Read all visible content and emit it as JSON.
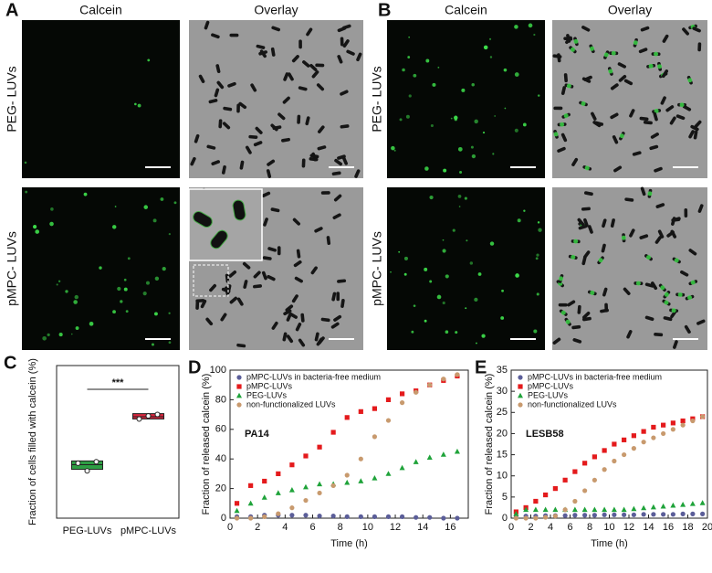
{
  "panels": [
    {
      "label": "A",
      "columns": [
        "Calcein",
        "Overlay"
      ],
      "rows": [
        "PEG- LUVs",
        "pMPC- LUVs"
      ]
    },
    {
      "label": "B",
      "columns": [
        "Calcein",
        "Overlay"
      ],
      "rows": [
        "PEG- LUVs",
        "pMPC- LUVs"
      ]
    }
  ],
  "chart_data": [
    {
      "type": "box",
      "panel": "C",
      "ylabel": "Fraction of cells filled with calcein (%)",
      "categories": [
        "PEG-LUVs",
        "pMPC-LUVs"
      ],
      "ylim": [
        0,
        100
      ],
      "boxes": [
        {
          "low": 32,
          "median": 35,
          "high": 37.5,
          "color": "#2e9e44"
        },
        {
          "low": 65,
          "median": 66.5,
          "high": 68.5,
          "color": "#d7263d"
        }
      ],
      "points": [
        [
          36,
          31,
          37
        ],
        [
          65,
          67,
          68
        ]
      ],
      "annotation": "***"
    },
    {
      "type": "scatter",
      "panel": "D",
      "annotation": "PA14",
      "xlabel": "Time (h)",
      "ylabel": "Fraction of released calcein (%)",
      "xlim": [
        0,
        17.3
      ],
      "xticks": [
        0,
        2,
        4,
        6,
        8,
        10,
        12,
        14,
        16
      ],
      "ylim": [
        0,
        100
      ],
      "yticks": [
        0,
        20,
        40,
        60,
        80,
        100
      ],
      "legend": "upper left",
      "x": [
        0.5,
        1.5,
        2.5,
        3.5,
        4.5,
        5.5,
        6.5,
        7.5,
        8.5,
        9.5,
        10.5,
        11.5,
        12.5,
        13.5,
        14.5,
        15.5,
        16.5
      ],
      "series": [
        {
          "name": "pMPC-LUVs in bacteria-free medium",
          "color": "#5b5e99",
          "marker": "circle",
          "values": [
            1,
            1,
            2,
            2,
            2,
            2,
            1.5,
            1.5,
            1,
            1,
            1,
            1,
            1,
            0.5,
            0.5,
            0,
            0
          ]
        },
        {
          "name": "pMPC-LUVs",
          "color": "#e41a1c",
          "marker": "square",
          "values": [
            10,
            22,
            25,
            30,
            36,
            42,
            48,
            58,
            68,
            72,
            74,
            80,
            84,
            86,
            90,
            93,
            96
          ]
        },
        {
          "name": "PEG-LUVs",
          "color": "#1fa33a",
          "marker": "triangle",
          "values": [
            5,
            10,
            14,
            17,
            19,
            21,
            23,
            23,
            24,
            25,
            27,
            30,
            34,
            38,
            41,
            43,
            45
          ]
        },
        {
          "name": "non-functionalized LUVs",
          "color": "#c89a6e",
          "marker": "circle",
          "values": [
            0,
            0,
            1,
            3,
            7,
            12,
            17,
            22,
            29,
            40,
            55,
            66,
            78,
            85,
            90,
            94,
            97
          ]
        }
      ]
    },
    {
      "type": "scatter",
      "panel": "E",
      "annotation": "LESB58",
      "xlabel": "Time (h)",
      "ylabel": "Fraction of released calcein (%)",
      "xlim": [
        0,
        20
      ],
      "xticks": [
        0,
        2,
        4,
        6,
        8,
        10,
        12,
        14,
        16,
        18,
        20
      ],
      "ylim": [
        0,
        35
      ],
      "yticks": [
        0,
        5,
        10,
        15,
        20,
        25,
        30,
        35
      ],
      "legend": "upper left",
      "x": [
        0.5,
        1.5,
        2.5,
        3.5,
        4.5,
        5.5,
        6.5,
        7.5,
        8.5,
        9.5,
        10.5,
        11.5,
        12.5,
        13.5,
        14.5,
        15.5,
        16.5,
        17.5,
        18.5,
        19.5
      ],
      "series": [
        {
          "name": "pMPC-LUVs in bacteria-free medium",
          "color": "#5b5e99",
          "marker": "circle",
          "values": [
            0.5,
            0.5,
            0.5,
            0.6,
            0.6,
            0.6,
            0.7,
            0.7,
            0.7,
            0.8,
            0.8,
            0.8,
            0.8,
            0.9,
            0.9,
            0.9,
            0.9,
            1,
            1,
            1
          ]
        },
        {
          "name": "pMPC-LUVs",
          "color": "#e41a1c",
          "marker": "square",
          "values": [
            1.5,
            2.5,
            4,
            5.5,
            7,
            9,
            11,
            13,
            14.5,
            16,
            17.5,
            18.5,
            19.5,
            20.5,
            21.5,
            22,
            22.5,
            23,
            23.5,
            24
          ]
        },
        {
          "name": "PEG-LUVs",
          "color": "#1fa33a",
          "marker": "triangle",
          "values": [
            1,
            2,
            2,
            2,
            2,
            2,
            2,
            2,
            2,
            2,
            2,
            2,
            2.2,
            2.4,
            2.6,
            2.8,
            3,
            3.2,
            3.4,
            3.6
          ]
        },
        {
          "name": "non-functionalized LUVs",
          "color": "#c89a6e",
          "marker": "circle",
          "values": [
            0,
            0,
            0,
            0.2,
            0.5,
            2,
            4,
            6.5,
            9,
            11.5,
            13.5,
            15,
            16.5,
            18,
            19,
            20,
            21,
            22,
            23,
            24
          ]
        }
      ]
    }
  ]
}
